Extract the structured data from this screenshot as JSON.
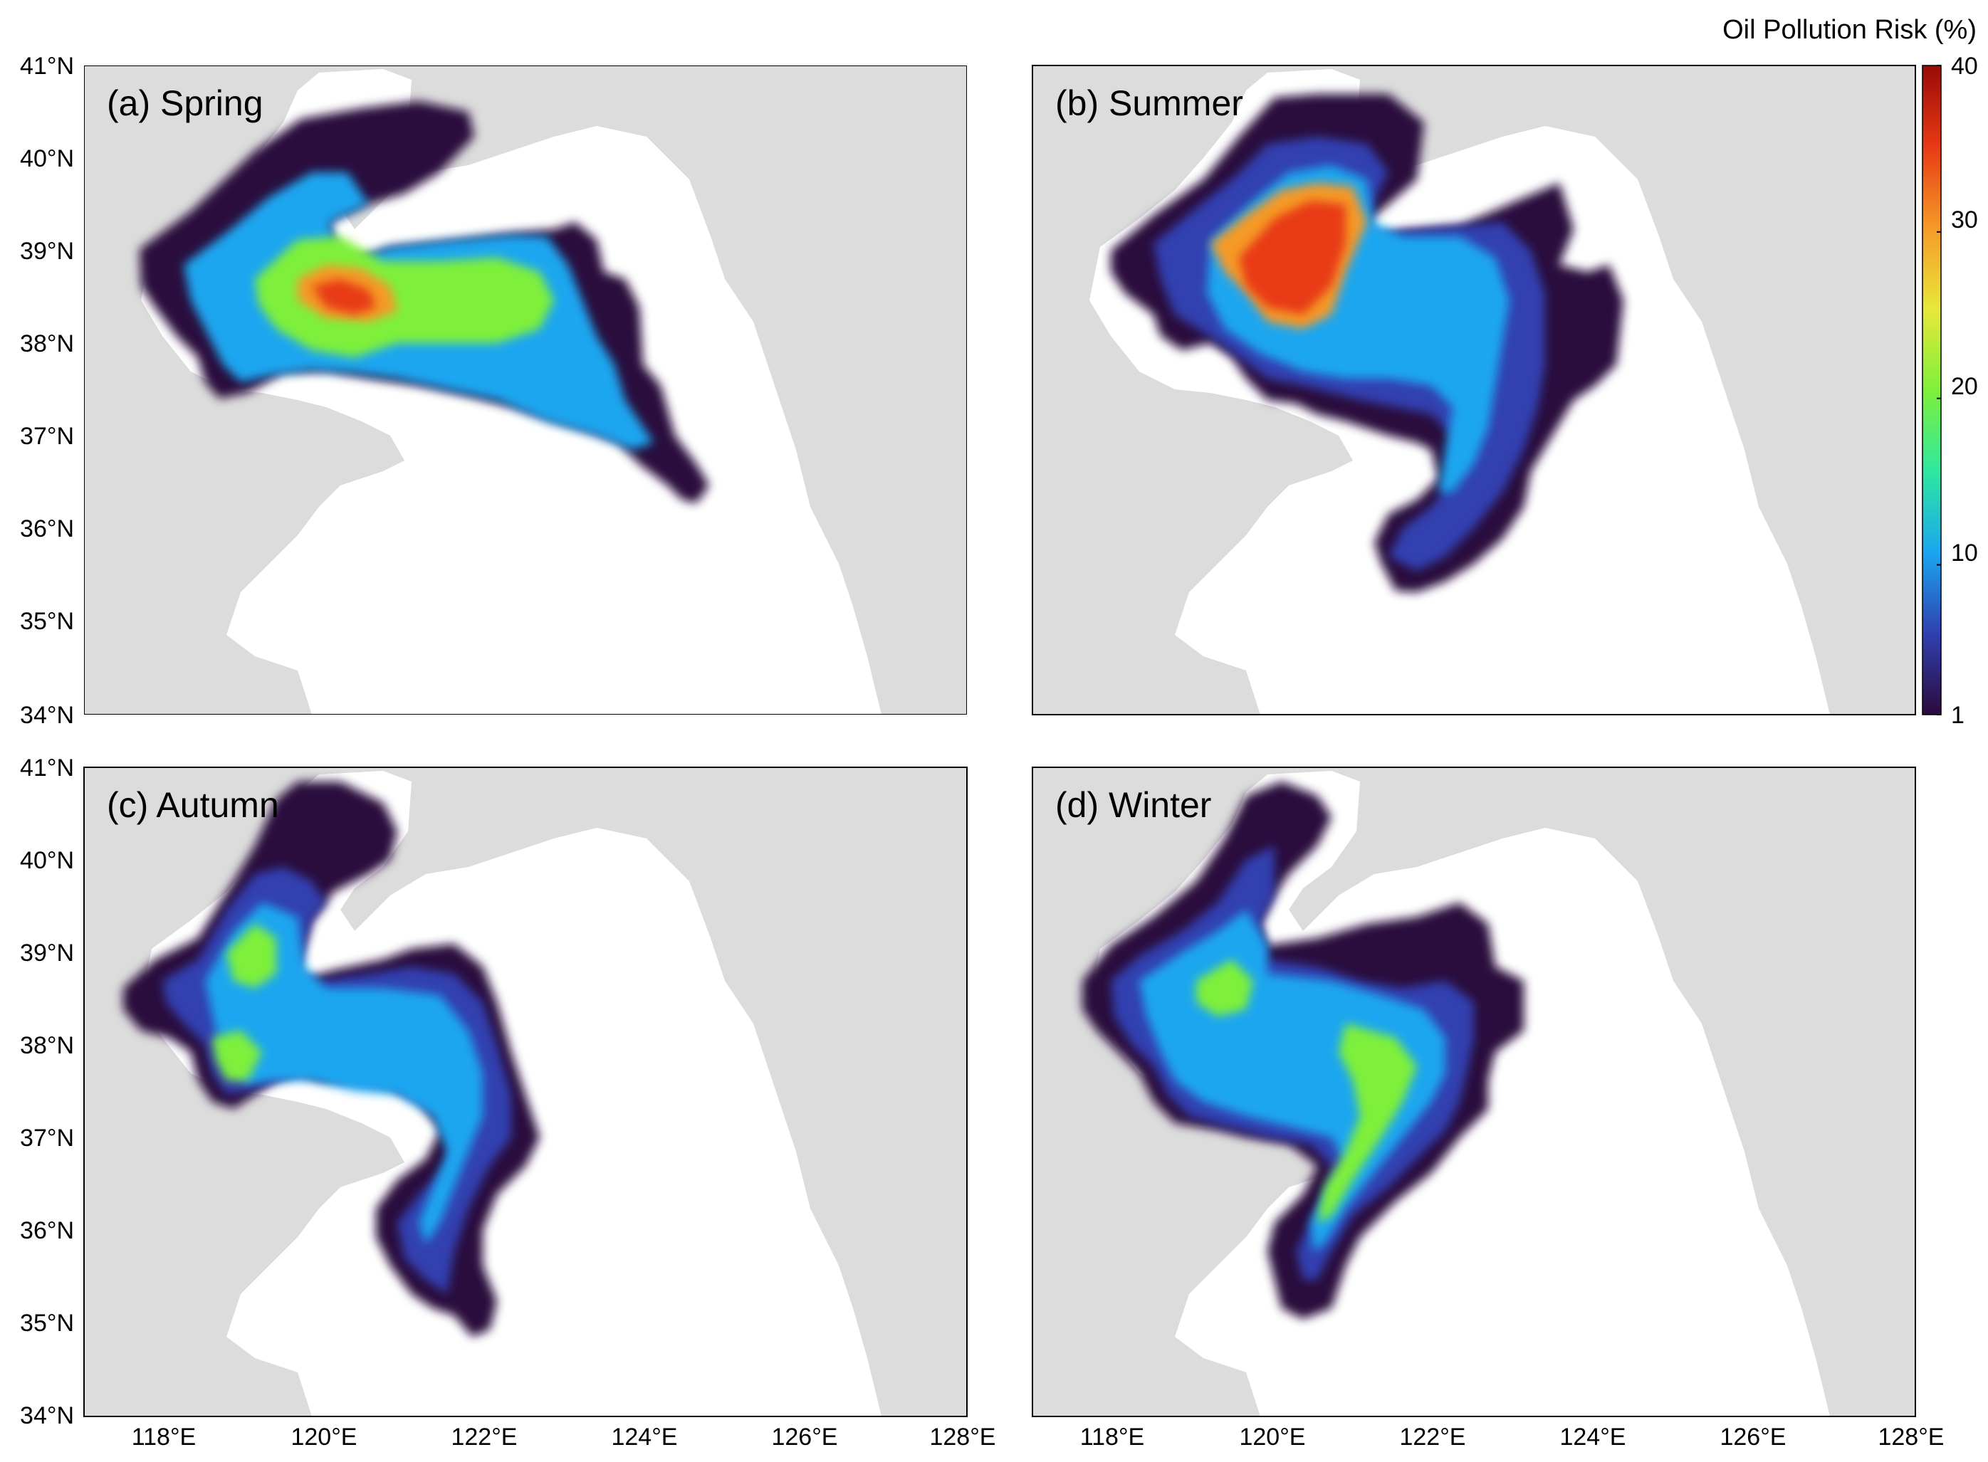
{
  "figure": {
    "colorbar": {
      "title": "Oil Pollution Risk (%)",
      "ticks": [
        {
          "value": 40,
          "label": "40"
        },
        {
          "value": 30,
          "label": "30"
        },
        {
          "value": 20,
          "label": "20"
        },
        {
          "value": 10,
          "label": "10"
        },
        {
          "value": 1,
          "label": "1"
        }
      ],
      "min": 1,
      "max": 40,
      "colors": [
        "#2b0a3d",
        "#3040b0",
        "#1aa6f0",
        "#2ee8a0",
        "#7ef03a",
        "#e8e83a",
        "#f59a28",
        "#e83a14",
        "#9a0a08"
      ]
    },
    "lat_ticks": [
      "41°N",
      "40°N",
      "39°N",
      "38°N",
      "37°N",
      "36°N",
      "35°N",
      "34°N"
    ],
    "lon_ticks": [
      "118°E",
      "120°E",
      "122°E",
      "124°E",
      "126°E",
      "128°E"
    ],
    "colors": {
      "land": "#dcdcdc",
      "sea": "#ffffff",
      "frame": "#000000"
    },
    "panels": [
      {
        "id": "a",
        "title": "(a) Spring"
      },
      {
        "id": "b",
        "title": "(b) Summer"
      },
      {
        "id": "c",
        "title": "(c) Autumn"
      },
      {
        "id": "d",
        "title": "(d) Winter"
      }
    ]
  }
}
